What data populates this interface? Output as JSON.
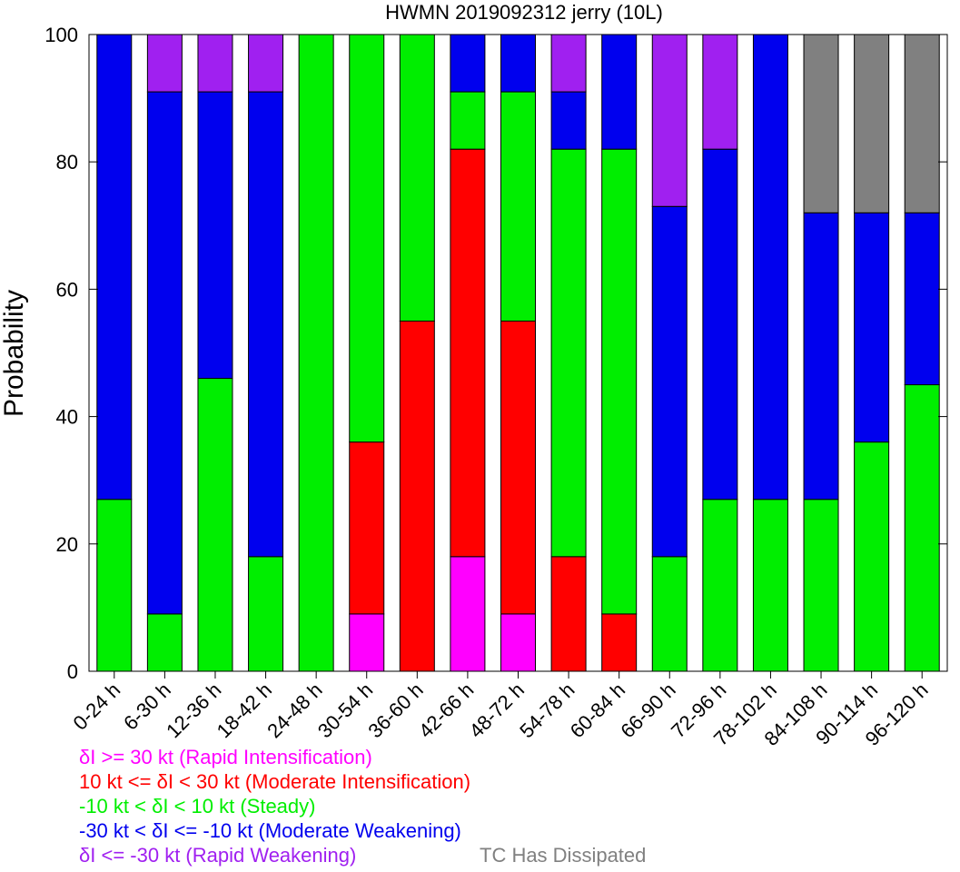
{
  "chart_data": {
    "type": "bar",
    "stacked": true,
    "title": "HWMN 2019092312 jerry (10L)",
    "xlabel": "",
    "ylabel": "Probability",
    "ylim": [
      0,
      100
    ],
    "yticks": [
      0,
      20,
      40,
      60,
      80,
      100
    ],
    "categories": [
      "0-24 h",
      "6-30 h",
      "12-36 h",
      "18-42 h",
      "24-48 h",
      "30-54 h",
      "36-60 h",
      "42-66 h",
      "48-72 h",
      "54-78 h",
      "60-84 h",
      "66-90 h",
      "72-96 h",
      "78-102 h",
      "84-108 h",
      "90-114 h",
      "96-120 h"
    ],
    "series": [
      {
        "key": "ri",
        "color": "#ff00ff",
        "values": [
          0,
          0,
          0,
          0,
          0,
          9,
          0,
          18,
          9,
          0,
          0,
          0,
          0,
          0,
          0,
          0,
          0
        ]
      },
      {
        "key": "mi",
        "color": "#ff0000",
        "values": [
          0,
          0,
          0,
          0,
          0,
          27,
          55,
          64,
          46,
          18,
          9,
          0,
          0,
          0,
          0,
          0,
          0
        ]
      },
      {
        "key": "steady",
        "color": "#00ee00",
        "values": [
          27,
          9,
          46,
          18,
          100,
          64,
          45,
          9,
          36,
          64,
          73,
          18,
          27,
          27,
          27,
          36,
          45
        ]
      },
      {
        "key": "mw",
        "color": "#0000ee",
        "values": [
          73,
          82,
          45,
          73,
          0,
          0,
          0,
          9,
          9,
          9,
          18,
          55,
          55,
          73,
          45,
          36,
          27
        ]
      },
      {
        "key": "rw",
        "color": "#a020f0",
        "values": [
          0,
          9,
          9,
          9,
          0,
          0,
          0,
          0,
          0,
          9,
          0,
          27,
          18,
          0,
          0,
          0,
          0
        ]
      },
      {
        "key": "dissipated",
        "color": "#808080",
        "values": [
          0,
          0,
          0,
          0,
          0,
          0,
          0,
          0,
          0,
          0,
          0,
          0,
          0,
          0,
          28,
          28,
          28
        ]
      }
    ],
    "legend": {
      "placement": "bottom-left",
      "entries": [
        {
          "text": "δI >= 30 kt (Rapid Intensification)",
          "color": "#ff00ff"
        },
        {
          "text": "10 kt <= δI < 30 kt (Moderate Intensification)",
          "color": "#ff0000"
        },
        {
          "text": "-10 kt < δI < 10 kt (Steady)",
          "color": "#00ee00"
        },
        {
          "text": "-30 kt < δI <= -10 kt (Moderate Weakening)",
          "color": "#0000ee"
        },
        {
          "text": "δI <= -30 kt (Rapid Weakening)",
          "color": "#a020f0"
        }
      ],
      "dissipated": {
        "text": "TC Has Dissipated",
        "color": "#808080"
      }
    },
    "grid": false
  }
}
